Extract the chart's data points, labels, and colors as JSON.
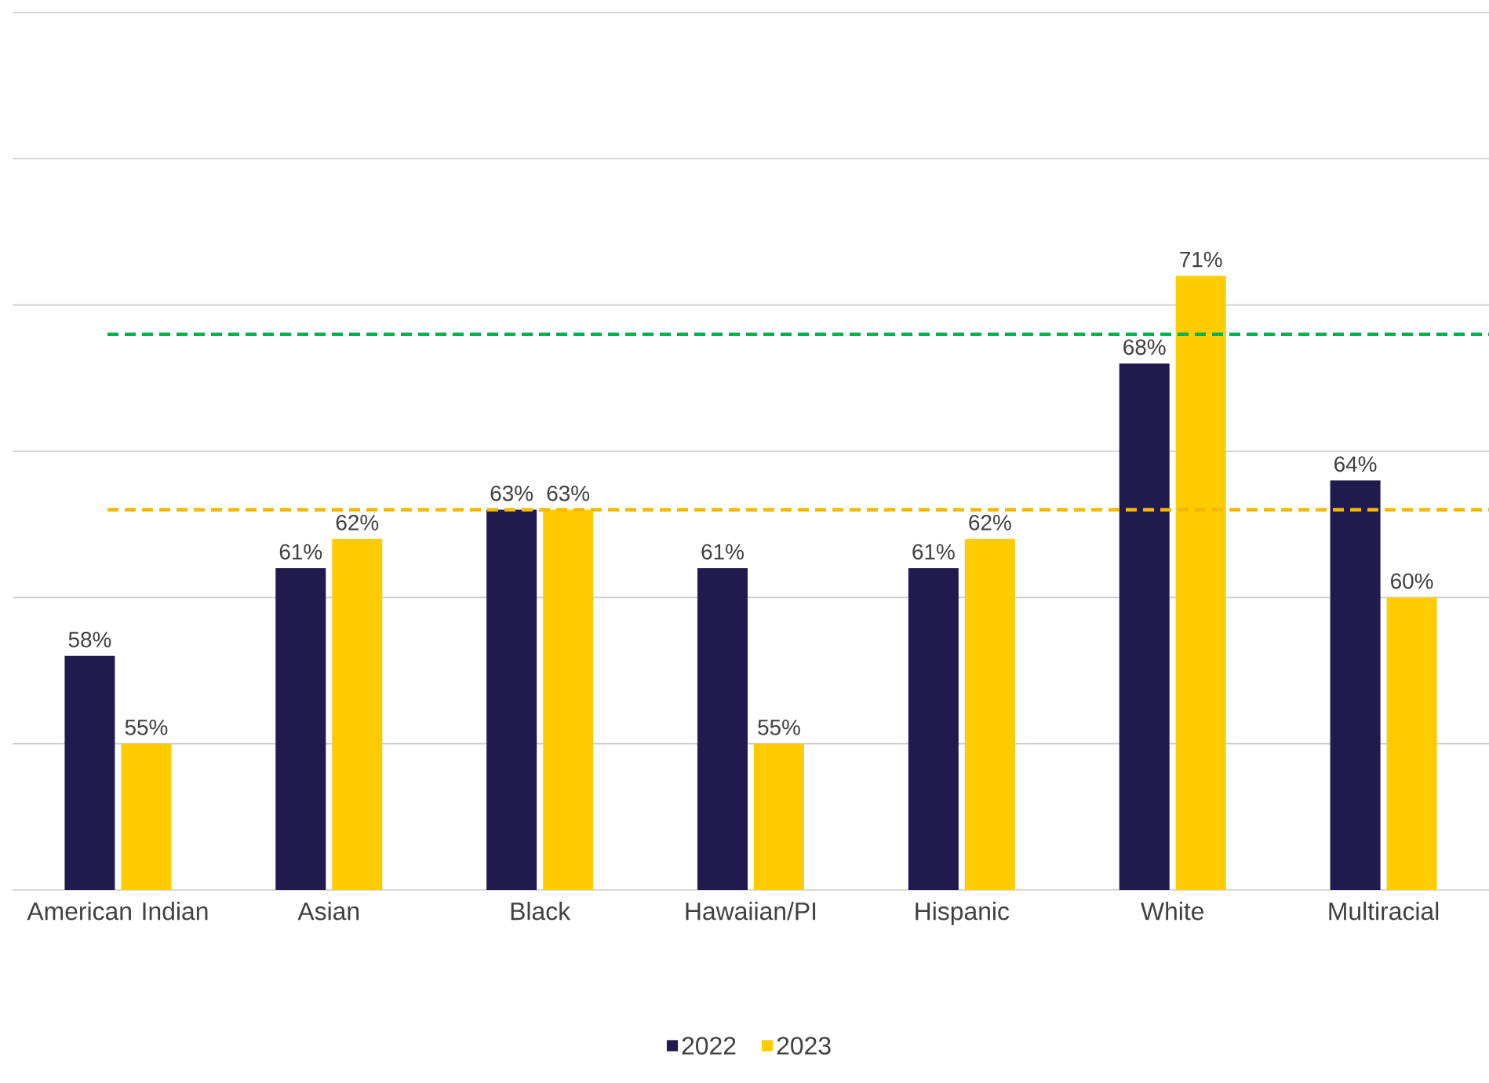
{
  "chart_data": {
    "type": "bar",
    "categories": [
      "American Indian",
      "Asian",
      "Black",
      "Hawaiian/PI",
      "Hispanic",
      "White",
      "Multiracial"
    ],
    "series": [
      {
        "name": "2022",
        "color": "#201a4f",
        "values": [
          58,
          61,
          63,
          61,
          61,
          68,
          64
        ],
        "value_labels": [
          "58%",
          "61%",
          "63%",
          "61%",
          "61%",
          "68%",
          "64%"
        ]
      },
      {
        "name": "2023",
        "color": "#ffcc00",
        "values": [
          55,
          62,
          63,
          55,
          62,
          71,
          60
        ],
        "value_labels": [
          "55%",
          "62%",
          "63%",
          "55%",
          "62%",
          "71%",
          "60%"
        ]
      }
    ],
    "ylim": [
      50,
      80
    ],
    "yticks": [
      {
        "value": 50,
        "label": null
      },
      {
        "value": 55,
        "label": null
      },
      {
        "value": 60,
        "label": null
      },
      {
        "value": 65,
        "label": null
      },
      {
        "value": 70,
        "label": null
      },
      {
        "value": 75,
        "label": null
      },
      {
        "value": 80,
        "label": null
      }
    ],
    "tick_labels": "x",
    "grid": "y",
    "legend": "bottom",
    "ref_lines": [
      {
        "axis": "y",
        "value": 69,
        "color": "#00b050",
        "line_style": "dashed"
      },
      {
        "axis": "y",
        "value": 63,
        "color": "#f5b800",
        "line_style": "dashed"
      }
    ]
  }
}
